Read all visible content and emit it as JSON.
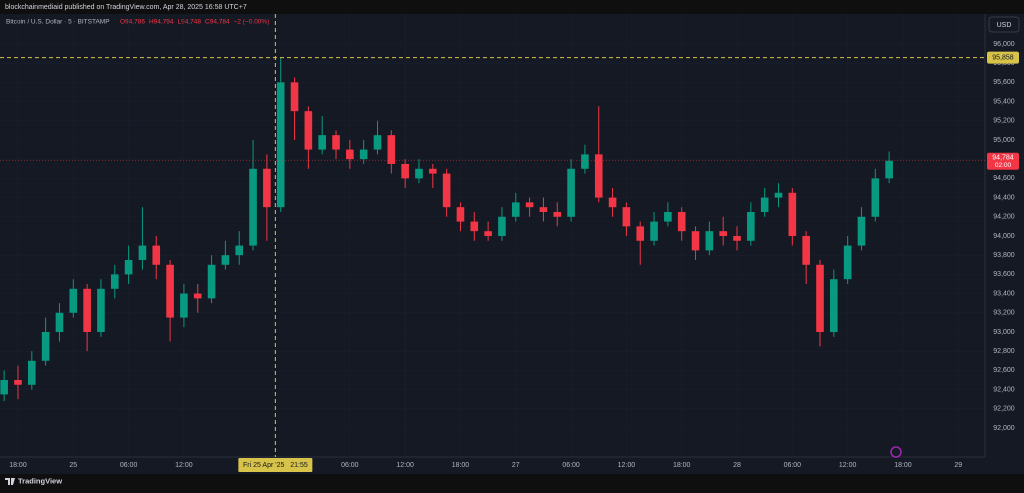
{
  "header": {
    "publisher": "blockchainmediaid published on TradingView.com, Apr 28, 2025 16:58 UTC+7"
  },
  "chart_data": {
    "type": "candlestick",
    "symbol": "Bitcoin / U.S. Dollar · 5 · BITSTAMP",
    "ohlc_legend": [
      "O94,786",
      "H94,794",
      "L94,748",
      "C94,784",
      "−2 (−0.00%)"
    ],
    "currency": "USD",
    "up_color": "#089981",
    "down_color": "#f23645",
    "x": [
      -1.5,
      0,
      1.5,
      3,
      4.5,
      6,
      7.5,
      9,
      10.5,
      12,
      13.5,
      15,
      16.5,
      18,
      19.5,
      21,
      22.5,
      24,
      25.5,
      27,
      28.5,
      30,
      31.5,
      33,
      34.5,
      36,
      37.5,
      39,
      40.5,
      42,
      43.5,
      45,
      46.5,
      48,
      49.5,
      51,
      52.5,
      54,
      55.5,
      57,
      58.5,
      60,
      61.5,
      63,
      64.5,
      66,
      67.5,
      69,
      70.5,
      72,
      73.5,
      75,
      76.5,
      78,
      79.5,
      81,
      82.5,
      84,
      85.5,
      87,
      88.5,
      90,
      91.5,
      93,
      94.5
    ],
    "open": [
      92350,
      92500,
      92450,
      92700,
      93000,
      93200,
      93450,
      93000,
      93450,
      93600,
      93750,
      93900,
      93700,
      93150,
      93400,
      93350,
      93700,
      93800,
      93900,
      94700,
      94300,
      95600,
      95300,
      94900,
      95050,
      94900,
      94800,
      94900,
      95050,
      94750,
      94600,
      94700,
      94650,
      94300,
      94150,
      94050,
      94000,
      94200,
      94350,
      94300,
      94250,
      94200,
      94700,
      94850,
      94400,
      94300,
      94100,
      93950,
      94150,
      94250,
      94050,
      93850,
      94050,
      94000,
      93950,
      94250,
      94400,
      94450,
      94000,
      93700,
      93000,
      93550,
      93900,
      94200,
      94600
    ],
    "high": [
      92600,
      92650,
      92800,
      93150,
      93300,
      93550,
      93500,
      93550,
      93700,
      93900,
      94300,
      94000,
      93750,
      93500,
      93500,
      93800,
      93950,
      94050,
      95000,
      94850,
      95858,
      95650,
      95350,
      95250,
      95100,
      95000,
      95000,
      95200,
      95100,
      94800,
      94800,
      94750,
      94700,
      94350,
      94250,
      94150,
      94300,
      94450,
      94400,
      94400,
      94350,
      94800,
      94950,
      95350,
      94500,
      94350,
      94150,
      94250,
      94350,
      94300,
      94100,
      94150,
      94200,
      94100,
      94350,
      94500,
      94550,
      94500,
      94050,
      93750,
      93650,
      94000,
      94300,
      94700,
      94880
    ],
    "low": [
      92280,
      92300,
      92400,
      92650,
      92900,
      93150,
      92800,
      92950,
      93350,
      93500,
      93650,
      93550,
      92900,
      93050,
      93200,
      93300,
      93650,
      93700,
      93850,
      93950,
      94250,
      95000,
      94700,
      94850,
      94800,
      94700,
      94750,
      94850,
      94650,
      94500,
      94550,
      94500,
      94200,
      94050,
      93950,
      93950,
      93950,
      94150,
      94200,
      94150,
      94100,
      94150,
      94650,
      94350,
      94200,
      94000,
      93700,
      93900,
      94100,
      93950,
      93750,
      93800,
      93900,
      93850,
      93900,
      94200,
      94300,
      93900,
      93500,
      92850,
      92950,
      93500,
      93850,
      94150,
      94550
    ],
    "close": [
      92500,
      92450,
      92700,
      93000,
      93200,
      93450,
      93000,
      93450,
      93600,
      93750,
      93900,
      93700,
      93150,
      93400,
      93350,
      93700,
      93800,
      93900,
      94700,
      94300,
      95600,
      95300,
      94900,
      95050,
      94900,
      94800,
      94900,
      95050,
      94750,
      94600,
      94700,
      94650,
      94300,
      94150,
      94050,
      94000,
      94200,
      94350,
      94300,
      94250,
      94200,
      94700,
      94850,
      94400,
      94300,
      94100,
      93950,
      94150,
      94250,
      94050,
      93850,
      94050,
      94000,
      93950,
      94250,
      94400,
      94450,
      94000,
      93700,
      93000,
      93550,
      93900,
      94200,
      94600,
      94784
    ],
    "xlim": [
      -1.95,
      104.9
    ],
    "xticks": [
      {
        "value": 0,
        "label": "18:00"
      },
      {
        "value": 6,
        "label": "25"
      },
      {
        "value": 12,
        "label": "06:00"
      },
      {
        "value": 18,
        "label": "12:00"
      },
      {
        "value": 36,
        "label": "06:00"
      },
      {
        "value": 42,
        "label": "12:00"
      },
      {
        "value": 48,
        "label": "18:00"
      },
      {
        "value": 54,
        "label": "27"
      },
      {
        "value": 60,
        "label": "06:00"
      },
      {
        "value": 66,
        "label": "12:00"
      },
      {
        "value": 72,
        "label": "18:00"
      },
      {
        "value": 78,
        "label": "28"
      },
      {
        "value": 84,
        "label": "06:00"
      },
      {
        "value": 90,
        "label": "12:00"
      },
      {
        "value": 96,
        "label": "18:00"
      },
      {
        "value": 102,
        "label": "29"
      }
    ],
    "ylim": [
      91698,
      96312
    ],
    "yticks": [
      {
        "value": 92000,
        "label": "92,000"
      },
      {
        "value": 92200,
        "label": "92,200"
      },
      {
        "value": 92400,
        "label": "92,400"
      },
      {
        "value": 92600,
        "label": "92,600"
      },
      {
        "value": 92800,
        "label": "92,800"
      },
      {
        "value": 93000,
        "label": "93,000"
      },
      {
        "value": 93200,
        "label": "93,200"
      },
      {
        "value": 93400,
        "label": "93,400"
      },
      {
        "value": 93600,
        "label": "93,600"
      },
      {
        "value": 93800,
        "label": "93,800"
      },
      {
        "value": 94000,
        "label": "94,000"
      },
      {
        "value": 94200,
        "label": "94,200"
      },
      {
        "value": 94400,
        "label": "94,400"
      },
      {
        "value": 94600,
        "label": "94,600"
      },
      {
        "value": 94800,
        "label": "94,800"
      },
      {
        "value": 95000,
        "label": "95,000"
      },
      {
        "value": 95200,
        "label": "95,200"
      },
      {
        "value": 95400,
        "label": "95,400"
      },
      {
        "value": 95600,
        "label": "95,600"
      },
      {
        "value": 95800,
        "label": "95,800"
      },
      {
        "value": 96000,
        "label": "96,000"
      }
    ],
    "crosshair": {
      "price": {
        "value": 95858,
        "label": "95,858"
      },
      "time": {
        "value": 27.92,
        "label": "Fri 25 Apr '25   21:55"
      },
      "color": "#d8c34a"
    },
    "last_price": {
      "value": 94784,
      "label": "94,784",
      "countdown": "02:00"
    }
  },
  "footer": {
    "brand": "TradingView"
  }
}
